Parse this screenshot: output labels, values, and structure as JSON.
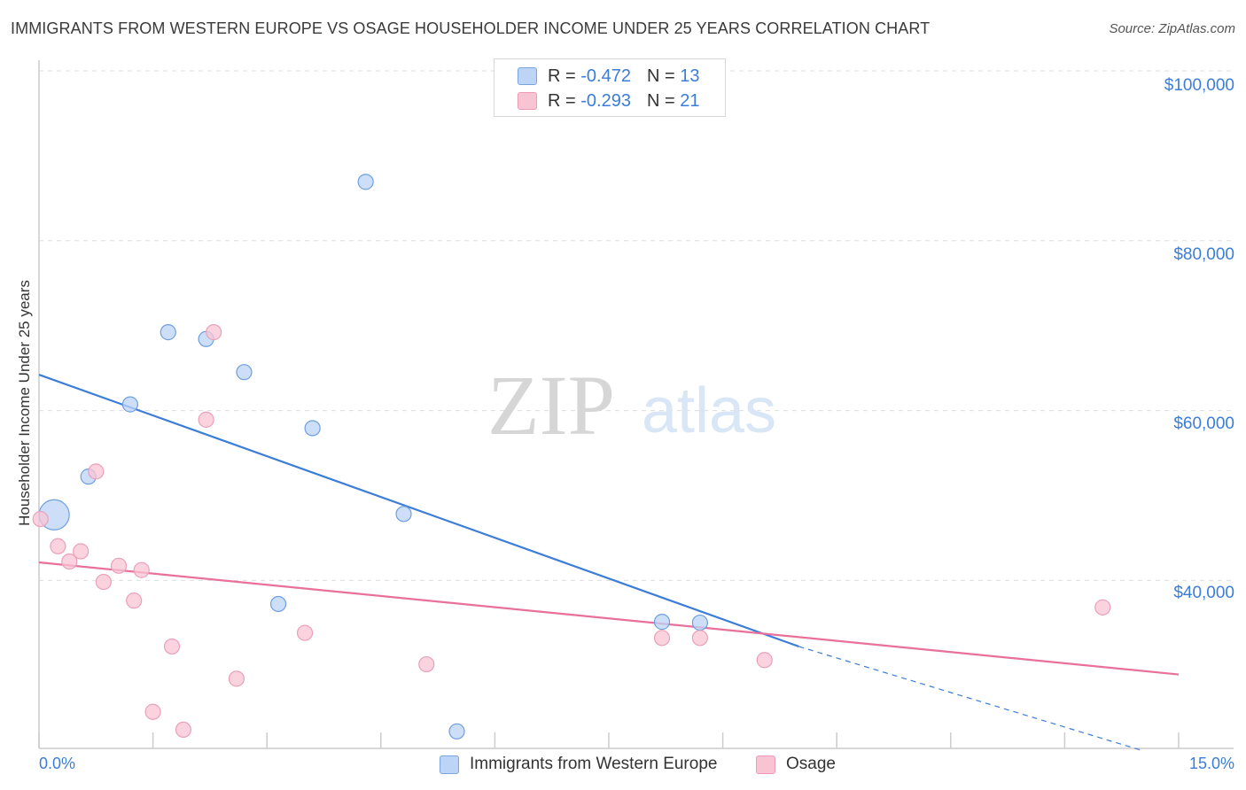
{
  "header": {
    "title": "IMMIGRANTS FROM WESTERN EUROPE VS OSAGE HOUSEHOLDER INCOME UNDER 25 YEARS CORRELATION CHART",
    "source": "Source: ZipAtlas.com"
  },
  "watermark": {
    "zip": "ZIP",
    "atlas": "atlas"
  },
  "legend": {
    "r_label": "R =",
    "n_label": "N =",
    "rows": [
      {
        "r": "-0.472",
        "n": "13"
      },
      {
        "r": "-0.293",
        "n": "21"
      }
    ]
  },
  "colors": {
    "blue": "#3b7dd8",
    "blue_fill": "#bcd4f5",
    "pink": "#e8709a",
    "pink_fill": "#f8c4d4",
    "grid": "#dddddd"
  },
  "chart_data": {
    "type": "scatter",
    "title": "IMMIGRANTS FROM WESTERN EUROPE VS OSAGE HOUSEHOLDER INCOME UNDER 25 YEARS CORRELATION CHART",
    "xlabel": "",
    "ylabel": "Householder Income Under 25 years",
    "xlim": [
      0,
      15
    ],
    "ylim": [
      22000,
      102000
    ],
    "x_tick_labels": {
      "min": "0.0%",
      "max": "15.0%"
    },
    "y_ticks": [
      {
        "value": 40000,
        "label": "$40,000"
      },
      {
        "value": 60000,
        "label": "$60,000"
      },
      {
        "value": 80000,
        "label": "$80,000"
      },
      {
        "value": 100000,
        "label": "$100,000"
      }
    ],
    "grid": true,
    "series": [
      {
        "name": "Immigrants from Western Europe",
        "color": "#3b7dd8",
        "r": -0.472,
        "n": 13,
        "points": [
          {
            "x": 0.2,
            "y": 49500,
            "size": "large"
          },
          {
            "x": 0.65,
            "y": 54000
          },
          {
            "x": 1.2,
            "y": 62500
          },
          {
            "x": 1.7,
            "y": 71000
          },
          {
            "x": 2.2,
            "y": 70200
          },
          {
            "x": 2.7,
            "y": 66300
          },
          {
            "x": 3.6,
            "y": 59700
          },
          {
            "x": 4.3,
            "y": 88700
          },
          {
            "x": 4.8,
            "y": 49600
          },
          {
            "x": 3.15,
            "y": 39000
          },
          {
            "x": 8.2,
            "y": 36900
          },
          {
            "x": 8.7,
            "y": 36800
          },
          {
            "x": 5.5,
            "y": 24000
          }
        ],
        "trend": {
          "x1": 0,
          "y1": 66000,
          "x2": 10.0,
          "y2": 34000,
          "dash_to_x": 14.5,
          "dash_to_y": 21800
        }
      },
      {
        "name": "Osage",
        "color": "#e8709a",
        "r": -0.293,
        "n": 21,
        "points": [
          {
            "x": 0.02,
            "y": 49000
          },
          {
            "x": 0.25,
            "y": 45800
          },
          {
            "x": 0.4,
            "y": 44000
          },
          {
            "x": 0.55,
            "y": 45200
          },
          {
            "x": 0.75,
            "y": 54600
          },
          {
            "x": 0.85,
            "y": 41600
          },
          {
            "x": 1.05,
            "y": 43500
          },
          {
            "x": 1.25,
            "y": 39400
          },
          {
            "x": 1.35,
            "y": 43000
          },
          {
            "x": 1.5,
            "y": 26300
          },
          {
            "x": 1.75,
            "y": 34000
          },
          {
            "x": 1.9,
            "y": 24200
          },
          {
            "x": 2.2,
            "y": 60700
          },
          {
            "x": 2.3,
            "y": 71000
          },
          {
            "x": 2.6,
            "y": 30200
          },
          {
            "x": 3.5,
            "y": 35600
          },
          {
            "x": 5.1,
            "y": 31900
          },
          {
            "x": 8.2,
            "y": 35000
          },
          {
            "x": 8.7,
            "y": 35000
          },
          {
            "x": 9.55,
            "y": 32400
          },
          {
            "x": 14.0,
            "y": 38600
          }
        ],
        "trend": {
          "x1": 0,
          "y1": 43900,
          "x2": 15.0,
          "y2": 30700
        }
      }
    ]
  },
  "bottom_legend": {
    "blue_label": "Immigrants from Western Europe",
    "pink_label": "Osage"
  }
}
